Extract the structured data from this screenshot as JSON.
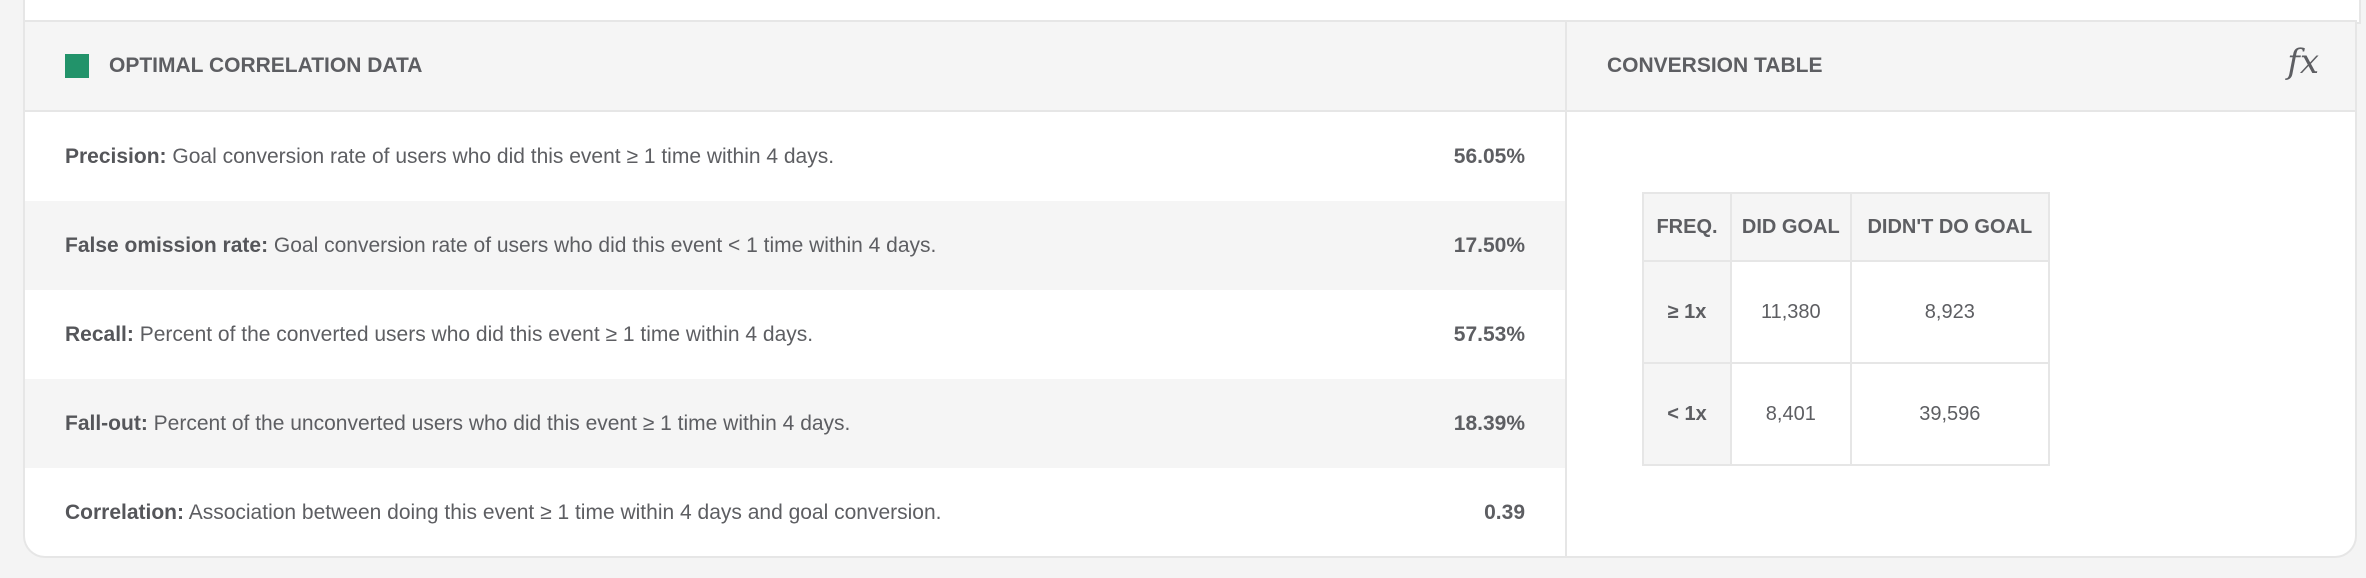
{
  "correlation_panel": {
    "title": "OPTIMAL CORRELATION DATA",
    "accent_color": "#22936a",
    "rows": [
      {
        "label": "Precision:",
        "description": "Goal conversion rate of users who did this event ≥ 1 time within 4 days.",
        "value": "56.05%"
      },
      {
        "label": "False omission rate:",
        "description": "Goal conversion rate of users who did this event < 1 time within 4 days.",
        "value": "17.50%"
      },
      {
        "label": "Recall:",
        "description": "Percent of the converted users who did this event ≥ 1 time within 4 days.",
        "value": "57.53%"
      },
      {
        "label": "Fall-out:",
        "description": "Percent of the unconverted users who did this event ≥ 1 time within 4 days.",
        "value": "18.39%"
      },
      {
        "label": "Correlation:",
        "description": "Association between doing this event ≥ 1 time within 4 days and goal conversion.",
        "value": "0.39"
      }
    ]
  },
  "conversion_panel": {
    "title": "CONVERSION TABLE",
    "formula_icon": "fx",
    "headers": [
      "FREQ.",
      "DID GOAL",
      "DIDN'T DO GOAL"
    ],
    "rows": [
      {
        "freq": "≥ 1x",
        "did_goal": "11,380",
        "didnt_do_goal": "8,923"
      },
      {
        "freq": "< 1x",
        "did_goal": "8,401",
        "didnt_do_goal": "39,596"
      }
    ]
  }
}
